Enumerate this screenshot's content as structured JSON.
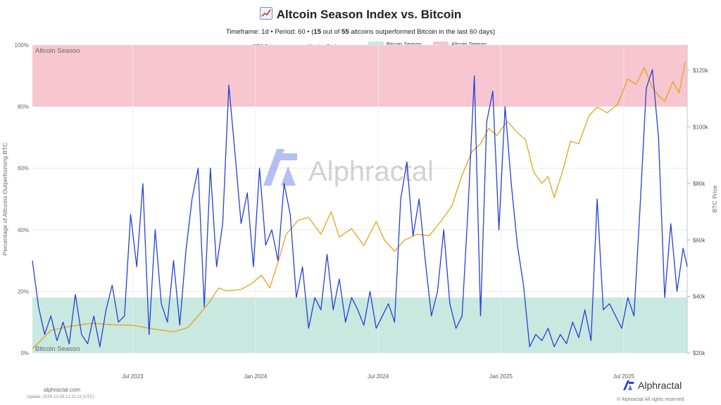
{
  "header": {
    "title": "Altcoin Season Index vs. Bitcoin",
    "subtitle_timeframe": "Timeframe: 1d  •  Period: 60  •  (",
    "subtitle_count": "15",
    "subtitle_mid": " out of ",
    "subtitle_total": "55",
    "subtitle_end": " altcoins outperformed Bitcoin in the last 60 days)"
  },
  "legend": {
    "items": [
      {
        "label": "BTC Price",
        "kind": "line",
        "color": "#E8A317"
      },
      {
        "label": "Altcoins Performance",
        "kind": "line",
        "color": "#2541D6"
      },
      {
        "label": "Bitcoin Season",
        "kind": "box",
        "color": "#C9E8E0"
      },
      {
        "label": "Altcoin Season",
        "kind": "box",
        "color": "#F7C6D0"
      }
    ]
  },
  "watermark": "Alphractal",
  "footer": {
    "site": "alphractal.com",
    "updated": "Update: 2025-10-03 12:11:13 (UTC)",
    "brand": "Alphractal",
    "copyright": "© Alphractal All rights reserved"
  },
  "chart_data": {
    "type": "line",
    "title": "Altcoin Season Index vs. Bitcoin",
    "ylabel": "Percentage of Altcoins Outperforming BTC",
    "y2label": "BTC Price",
    "ylim": [
      0,
      100
    ],
    "y2lim": [
      20000,
      129000
    ],
    "y_ticks": [
      "0%",
      "20%",
      "40%",
      "60%",
      "80%",
      "100%"
    ],
    "y_tick_values": [
      0,
      20,
      40,
      60,
      80,
      100
    ],
    "y2_ticks": [
      "$20k",
      "$40k",
      "$60k",
      "$80k",
      "$100k",
      "$120k"
    ],
    "y2_tick_values": [
      20000,
      40000,
      60000,
      80000,
      100000,
      120000
    ],
    "x_ticks": [
      "Jul 2023",
      "Jan 2024",
      "Jul 2024",
      "Jan 2025",
      "Jul 2025"
    ],
    "x_tick_months": [
      6,
      12,
      18,
      24,
      30
    ],
    "x_range_months": [
      1.1,
      33.1
    ],
    "bands": [
      {
        "name": "Bitcoin Season",
        "from": 0,
        "to": 18,
        "color": "#C9E8E0",
        "label": "Bitcoin Season"
      },
      {
        "name": "Altcoin Season",
        "from": 80,
        "to": 100,
        "color": "#F7C6D0",
        "label": "Altcoin Season"
      }
    ],
    "series": [
      {
        "name": "BTC Price",
        "axis": "right",
        "color": "#E8A317",
        "x": [
          1.1,
          2,
          3,
          4,
          5,
          6,
          7,
          8,
          8.7,
          9.3,
          9.7,
          10.2,
          10.6,
          11.3,
          11.8,
          12.3,
          12.7,
          13.1,
          13.5,
          14.1,
          14.6,
          15.2,
          15.7,
          16.1,
          16.7,
          17.3,
          17.9,
          18.3,
          18.8,
          19.3,
          19.9,
          20.5,
          21.1,
          21.6,
          22.1,
          22.6,
          23.0,
          23.4,
          23.8,
          24.3,
          24.8,
          25.2,
          25.6,
          26.0,
          26.3,
          26.6,
          27.0,
          27.4,
          27.8,
          28.3,
          28.7,
          29.2,
          29.7,
          30.2,
          30.6,
          31.0,
          31.4,
          31.7,
          32.0,
          32.4,
          32.7,
          33.0
        ],
        "values": [
          21500,
          28000,
          29500,
          30500,
          30000,
          29800,
          28500,
          27500,
          29000,
          34000,
          37500,
          43000,
          42000,
          42500,
          44500,
          47500,
          43000,
          52000,
          62000,
          67000,
          68000,
          62000,
          70000,
          61000,
          64000,
          58000,
          66500,
          60000,
          56000,
          60000,
          62000,
          61500,
          67000,
          72000,
          83000,
          91500,
          94000,
          99500,
          97000,
          102000,
          98000,
          95500,
          84000,
          80000,
          82500,
          75000,
          84000,
          95000,
          94000,
          104000,
          107000,
          105000,
          108000,
          117000,
          115000,
          121000,
          114000,
          111000,
          109000,
          116000,
          112000,
          123000
        ]
      },
      {
        "name": "Altcoins Performance",
        "axis": "left",
        "color": "#2541D6",
        "x": [
          1.1,
          1.4,
          1.7,
          2.0,
          2.3,
          2.6,
          2.9,
          3.2,
          3.5,
          3.8,
          4.1,
          4.4,
          4.7,
          5.0,
          5.3,
          5.6,
          5.9,
          6.2,
          6.5,
          6.8,
          7.1,
          7.4,
          7.7,
          8.0,
          8.3,
          8.6,
          8.9,
          9.2,
          9.5,
          9.8,
          10.1,
          10.4,
          10.7,
          11.0,
          11.3,
          11.6,
          11.9,
          12.2,
          12.5,
          12.8,
          13.1,
          13.4,
          13.7,
          14.0,
          14.3,
          14.6,
          14.9,
          15.2,
          15.5,
          15.8,
          16.1,
          16.4,
          16.7,
          17.0,
          17.3,
          17.6,
          17.9,
          18.2,
          18.5,
          18.8,
          19.1,
          19.4,
          19.7,
          20.0,
          20.3,
          20.6,
          20.9,
          21.2,
          21.5,
          21.8,
          22.1,
          22.4,
          22.7,
          23.0,
          23.3,
          23.6,
          23.9,
          24.2,
          24.5,
          24.8,
          25.1,
          25.4,
          25.7,
          26.0,
          26.3,
          26.6,
          26.9,
          27.2,
          27.5,
          27.8,
          28.1,
          28.4,
          28.7,
          29.0,
          29.3,
          29.6,
          29.9,
          30.2,
          30.5,
          30.8,
          31.1,
          31.4,
          31.7,
          32.0,
          32.3,
          32.6,
          32.9,
          33.1
        ],
        "values": [
          30,
          15,
          6,
          12,
          4,
          10,
          3,
          19,
          6,
          3,
          12,
          2,
          14,
          22,
          10,
          12,
          45,
          28,
          55,
          6,
          40,
          16,
          10,
          30,
          9,
          33,
          50,
          60,
          15,
          60,
          28,
          42,
          87,
          65,
          42,
          52,
          28,
          60,
          35,
          40,
          30,
          55,
          45,
          18,
          28,
          8,
          18,
          14,
          32,
          14,
          24,
          10,
          18,
          14,
          9,
          20,
          8,
          12,
          16,
          10,
          50,
          62,
          38,
          50,
          30,
          12,
          20,
          40,
          16,
          8,
          12,
          48,
          90,
          12,
          75,
          85,
          40,
          80,
          55,
          35,
          22,
          2,
          6,
          4,
          8,
          2,
          6,
          3,
          10,
          5,
          14,
          4,
          50,
          14,
          16,
          12,
          8,
          18,
          12,
          48,
          86,
          92,
          70,
          18,
          42,
          20,
          34,
          28
        ]
      }
    ]
  }
}
